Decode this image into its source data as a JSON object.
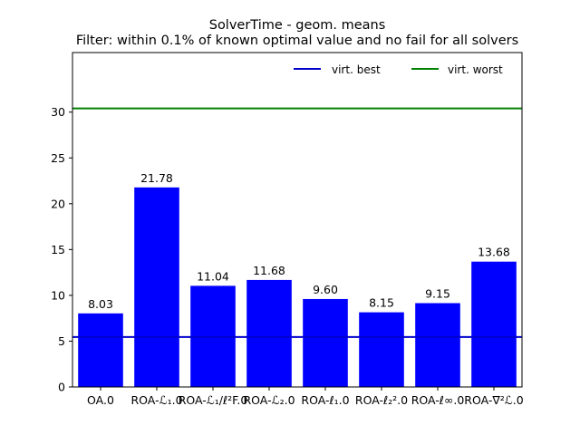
{
  "chart_data": {
    "type": "bar",
    "title": "SolverTime - geom. means",
    "subtitle": "Filter: within 0.1% of known optimal value and no fail for all solvers",
    "categories": [
      "OA.0",
      "ROA-ℒ₁.0",
      "ROA-ℒ₁/ℓ²F.0",
      "ROA-ℒ₂.0",
      "ROA-ℓ₁.0",
      "ROA-ℓ₂².0",
      "ROA-ℓ∞.0",
      "ROA-∇²ℒ.0"
    ],
    "values": [
      8.03,
      21.78,
      11.04,
      11.68,
      9.6,
      8.15,
      9.15,
      13.68
    ],
    "value_labels": [
      "8.03",
      "21.78",
      "11.04",
      "11.68",
      "9.60",
      "8.15",
      "9.15",
      "13.68"
    ],
    "bar_color": "#0000ff",
    "reference_lines": [
      {
        "name": "virt. best",
        "value": 5.45,
        "color": "#0000cc"
      },
      {
        "name": "virt. worst",
        "value": 30.4,
        "color": "#008000"
      }
    ],
    "ylim": [
      0,
      36.5
    ],
    "yticks": [
      0,
      5,
      10,
      15,
      20,
      25,
      30
    ],
    "legend_position": "top-right",
    "grid": false,
    "xlabel": "",
    "ylabel": ""
  }
}
